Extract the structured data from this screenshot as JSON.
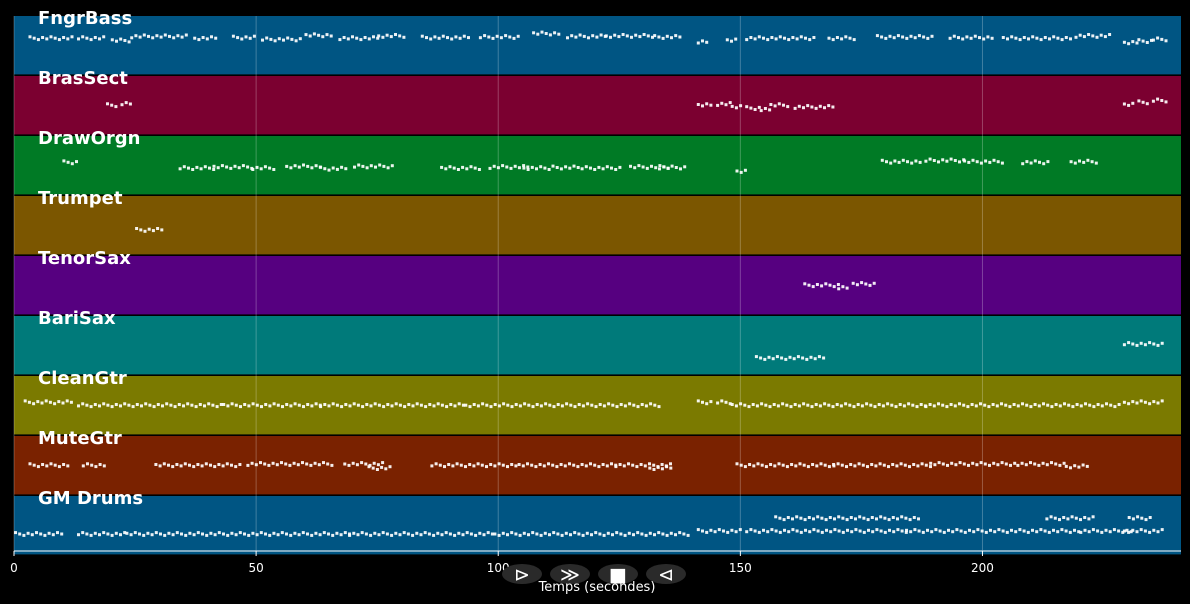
{
  "chart_data": {
    "type": "piano-roll",
    "xlabel": "Temps (secondes)",
    "xlim": [
      0,
      241
    ],
    "xticks": [
      0,
      50,
      100,
      150,
      200
    ],
    "grid": true,
    "tracks": [
      {
        "name": "FngrBass",
        "color": "#005583",
        "notes": [
          [
            3,
            9,
            0.62
          ],
          [
            13,
            6,
            0.62
          ],
          [
            20,
            4,
            0.58
          ],
          [
            24,
            12,
            0.65
          ],
          [
            37,
            5,
            0.62
          ],
          [
            45,
            5,
            0.63
          ],
          [
            51,
            8,
            0.6
          ],
          [
            60,
            6,
            0.67
          ],
          [
            67,
            8,
            0.62
          ],
          [
            75,
            6,
            0.66
          ],
          [
            84,
            10,
            0.63
          ],
          [
            96,
            8,
            0.64
          ],
          [
            107,
            6,
            0.7
          ],
          [
            114,
            8,
            0.65
          ],
          [
            122,
            10,
            0.66
          ],
          [
            132,
            6,
            0.64
          ],
          [
            141,
            2,
            0.55
          ],
          [
            147,
            2,
            0.58
          ],
          [
            151,
            14,
            0.62
          ],
          [
            168,
            6,
            0.62
          ],
          [
            178,
            12,
            0.64
          ],
          [
            193,
            9,
            0.63
          ],
          [
            204,
            14,
            0.62
          ],
          [
            219,
            7,
            0.66
          ],
          [
            229,
            3,
            0.55
          ],
          [
            232,
            3,
            0.57
          ],
          [
            235,
            3,
            0.6
          ]
        ]
      },
      {
        "name": "BrasSect",
        "color": "#7b0030",
        "notes": [
          [
            19,
            1.8,
            0.5
          ],
          [
            22,
            1.8,
            0.52
          ],
          [
            141,
            3,
            0.5
          ],
          [
            145,
            3,
            0.52
          ],
          [
            148,
            2,
            0.48
          ],
          [
            151,
            3,
            0.45
          ],
          [
            154,
            2,
            0.42
          ],
          [
            156,
            4,
            0.5
          ],
          [
            161,
            8,
            0.47
          ],
          [
            229,
            2,
            0.52
          ],
          [
            232,
            2,
            0.55
          ],
          [
            235,
            3,
            0.58
          ]
        ]
      },
      {
        "name": "DrawOrgn",
        "color": "#007a25",
        "notes": [
          [
            10,
            3,
            0.55
          ],
          [
            34,
            7,
            0.45
          ],
          [
            41,
            8,
            0.47
          ],
          [
            49,
            5,
            0.45
          ],
          [
            56,
            7,
            0.48
          ],
          [
            63,
            6,
            0.44
          ],
          [
            70,
            8,
            0.48
          ],
          [
            88,
            8,
            0.45
          ],
          [
            98,
            8,
            0.47
          ],
          [
            105,
            6,
            0.45
          ],
          [
            111,
            6,
            0.46
          ],
          [
            117,
            8,
            0.45
          ],
          [
            127,
            8,
            0.47
          ],
          [
            133,
            6,
            0.46
          ],
          [
            149,
            2,
            0.4
          ],
          [
            179,
            8,
            0.56
          ],
          [
            188,
            8,
            0.58
          ],
          [
            196,
            8,
            0.56
          ],
          [
            208,
            6,
            0.55
          ],
          [
            218,
            6,
            0.56
          ]
        ]
      },
      {
        "name": "Trumpet",
        "color": "#7b5600",
        "notes": [
          [
            25,
            6,
            0.42
          ]
        ]
      },
      {
        "name": "TenorSax",
        "color": "#560080",
        "notes": [
          [
            163,
            7,
            0.5
          ],
          [
            170,
            2,
            0.45
          ],
          [
            173,
            5,
            0.52
          ]
        ]
      },
      {
        "name": "BariSax",
        "color": "#007a7a",
        "notes": [
          [
            153,
            14,
            0.28
          ],
          [
            229,
            8,
            0.52
          ]
        ]
      },
      {
        "name": "CleanGtr",
        "color": "#7b7a00",
        "notes": [
          [
            2,
            10,
            0.55
          ],
          [
            13,
            30,
            0.5
          ],
          [
            43,
            20,
            0.5
          ],
          [
            63,
            30,
            0.5
          ],
          [
            93,
            40,
            0.5
          ],
          [
            141,
            3,
            0.55
          ],
          [
            145,
            3,
            0.55
          ],
          [
            148,
            40,
            0.5
          ],
          [
            188,
            40,
            0.5
          ],
          [
            229,
            8,
            0.55
          ]
        ]
      },
      {
        "name": "MuteGtr",
        "color": "#7a2200",
        "notes": [
          [
            3,
            8,
            0.5
          ],
          [
            14,
            5,
            0.5
          ],
          [
            29,
            18,
            0.5
          ],
          [
            48,
            18,
            0.52
          ],
          [
            68,
            8,
            0.52
          ],
          [
            73,
            5,
            0.45
          ],
          [
            86,
            18,
            0.5
          ],
          [
            104,
            20,
            0.5
          ],
          [
            124,
            12,
            0.5
          ],
          [
            131,
            5,
            0.45
          ],
          [
            149,
            20,
            0.5
          ],
          [
            169,
            20,
            0.5
          ],
          [
            189,
            18,
            0.52
          ],
          [
            207,
            10,
            0.52
          ],
          [
            217,
            5,
            0.48
          ]
        ]
      },
      {
        "name": "GM Drums",
        "color": "#005583",
        "notes": [
          [
            0,
            10,
            0.35
          ],
          [
            13,
            10,
            0.35
          ],
          [
            23,
            46,
            0.35
          ],
          [
            69,
            30,
            0.35
          ],
          [
            99,
            40,
            0.35
          ],
          [
            141,
            9,
            0.4
          ],
          [
            151,
            33,
            0.4
          ],
          [
            184,
            36,
            0.4
          ],
          [
            220,
            11,
            0.4
          ],
          [
            229,
            8,
            0.4
          ],
          [
            157,
            30,
            0.62
          ],
          [
            213,
            10,
            0.62
          ],
          [
            230,
            5,
            0.62
          ]
        ]
      }
    ]
  },
  "controls": [
    {
      "name": "play",
      "label": "⊳"
    },
    {
      "name": "forward",
      "label": "≫"
    },
    {
      "name": "stop",
      "label": "■"
    },
    {
      "name": "back",
      "label": "⊲"
    }
  ]
}
